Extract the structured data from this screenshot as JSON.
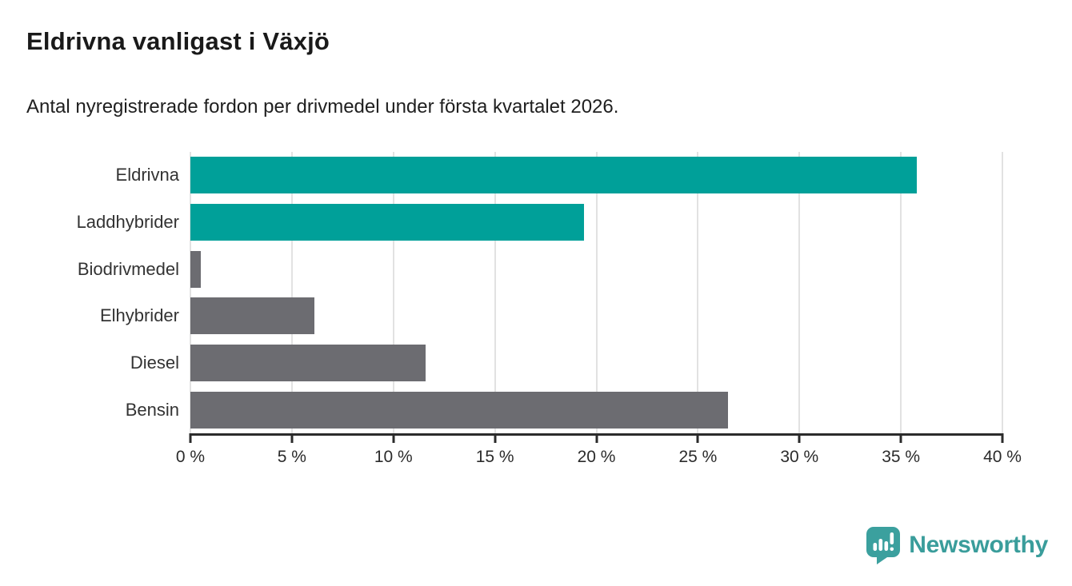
{
  "chart_data": {
    "type": "bar",
    "orientation": "horizontal",
    "title": "Eldrivna vanligast i Växjö",
    "subtitle": "Antal nyregistrerade fordon per drivmedel under första kvartalet 2026.",
    "categories": [
      "Eldrivna",
      "Laddhybrider",
      "Biodrivmedel",
      "Elhybrider",
      "Diesel",
      "Bensin"
    ],
    "values": [
      35.8,
      19.4,
      0.5,
      6.1,
      11.6,
      26.5
    ],
    "unit": "%",
    "xlim": [
      0,
      40
    ],
    "ticks": [
      {
        "value": 0,
        "label": "0 %"
      },
      {
        "value": 5,
        "label": "5 %"
      },
      {
        "value": 10,
        "label": "10 %"
      },
      {
        "value": 15,
        "label": "15 %"
      },
      {
        "value": 20,
        "label": "20 %"
      },
      {
        "value": 25,
        "label": "25 %"
      },
      {
        "value": 30,
        "label": "30 %"
      },
      {
        "value": 35,
        "label": "35 %"
      },
      {
        "value": 40,
        "label": "40 %"
      }
    ],
    "bar_colors": [
      "#00a099",
      "#00a099",
      "#6c6c71",
      "#6c6c71",
      "#6c6c71",
      "#6c6c71"
    ],
    "grid": true,
    "legend": false,
    "ylabel": "",
    "xlabel": ""
  },
  "colors": {
    "highlight": "#00a099",
    "neutral": "#6c6c71",
    "gridline": "#e2e2e2",
    "axis": "#2b2b2b",
    "brand": "#3a9d9b"
  },
  "footer": {
    "brand": "Newsworthy",
    "logo_icon": "newsworthy-speech-bubble-bar-chart-icon"
  }
}
